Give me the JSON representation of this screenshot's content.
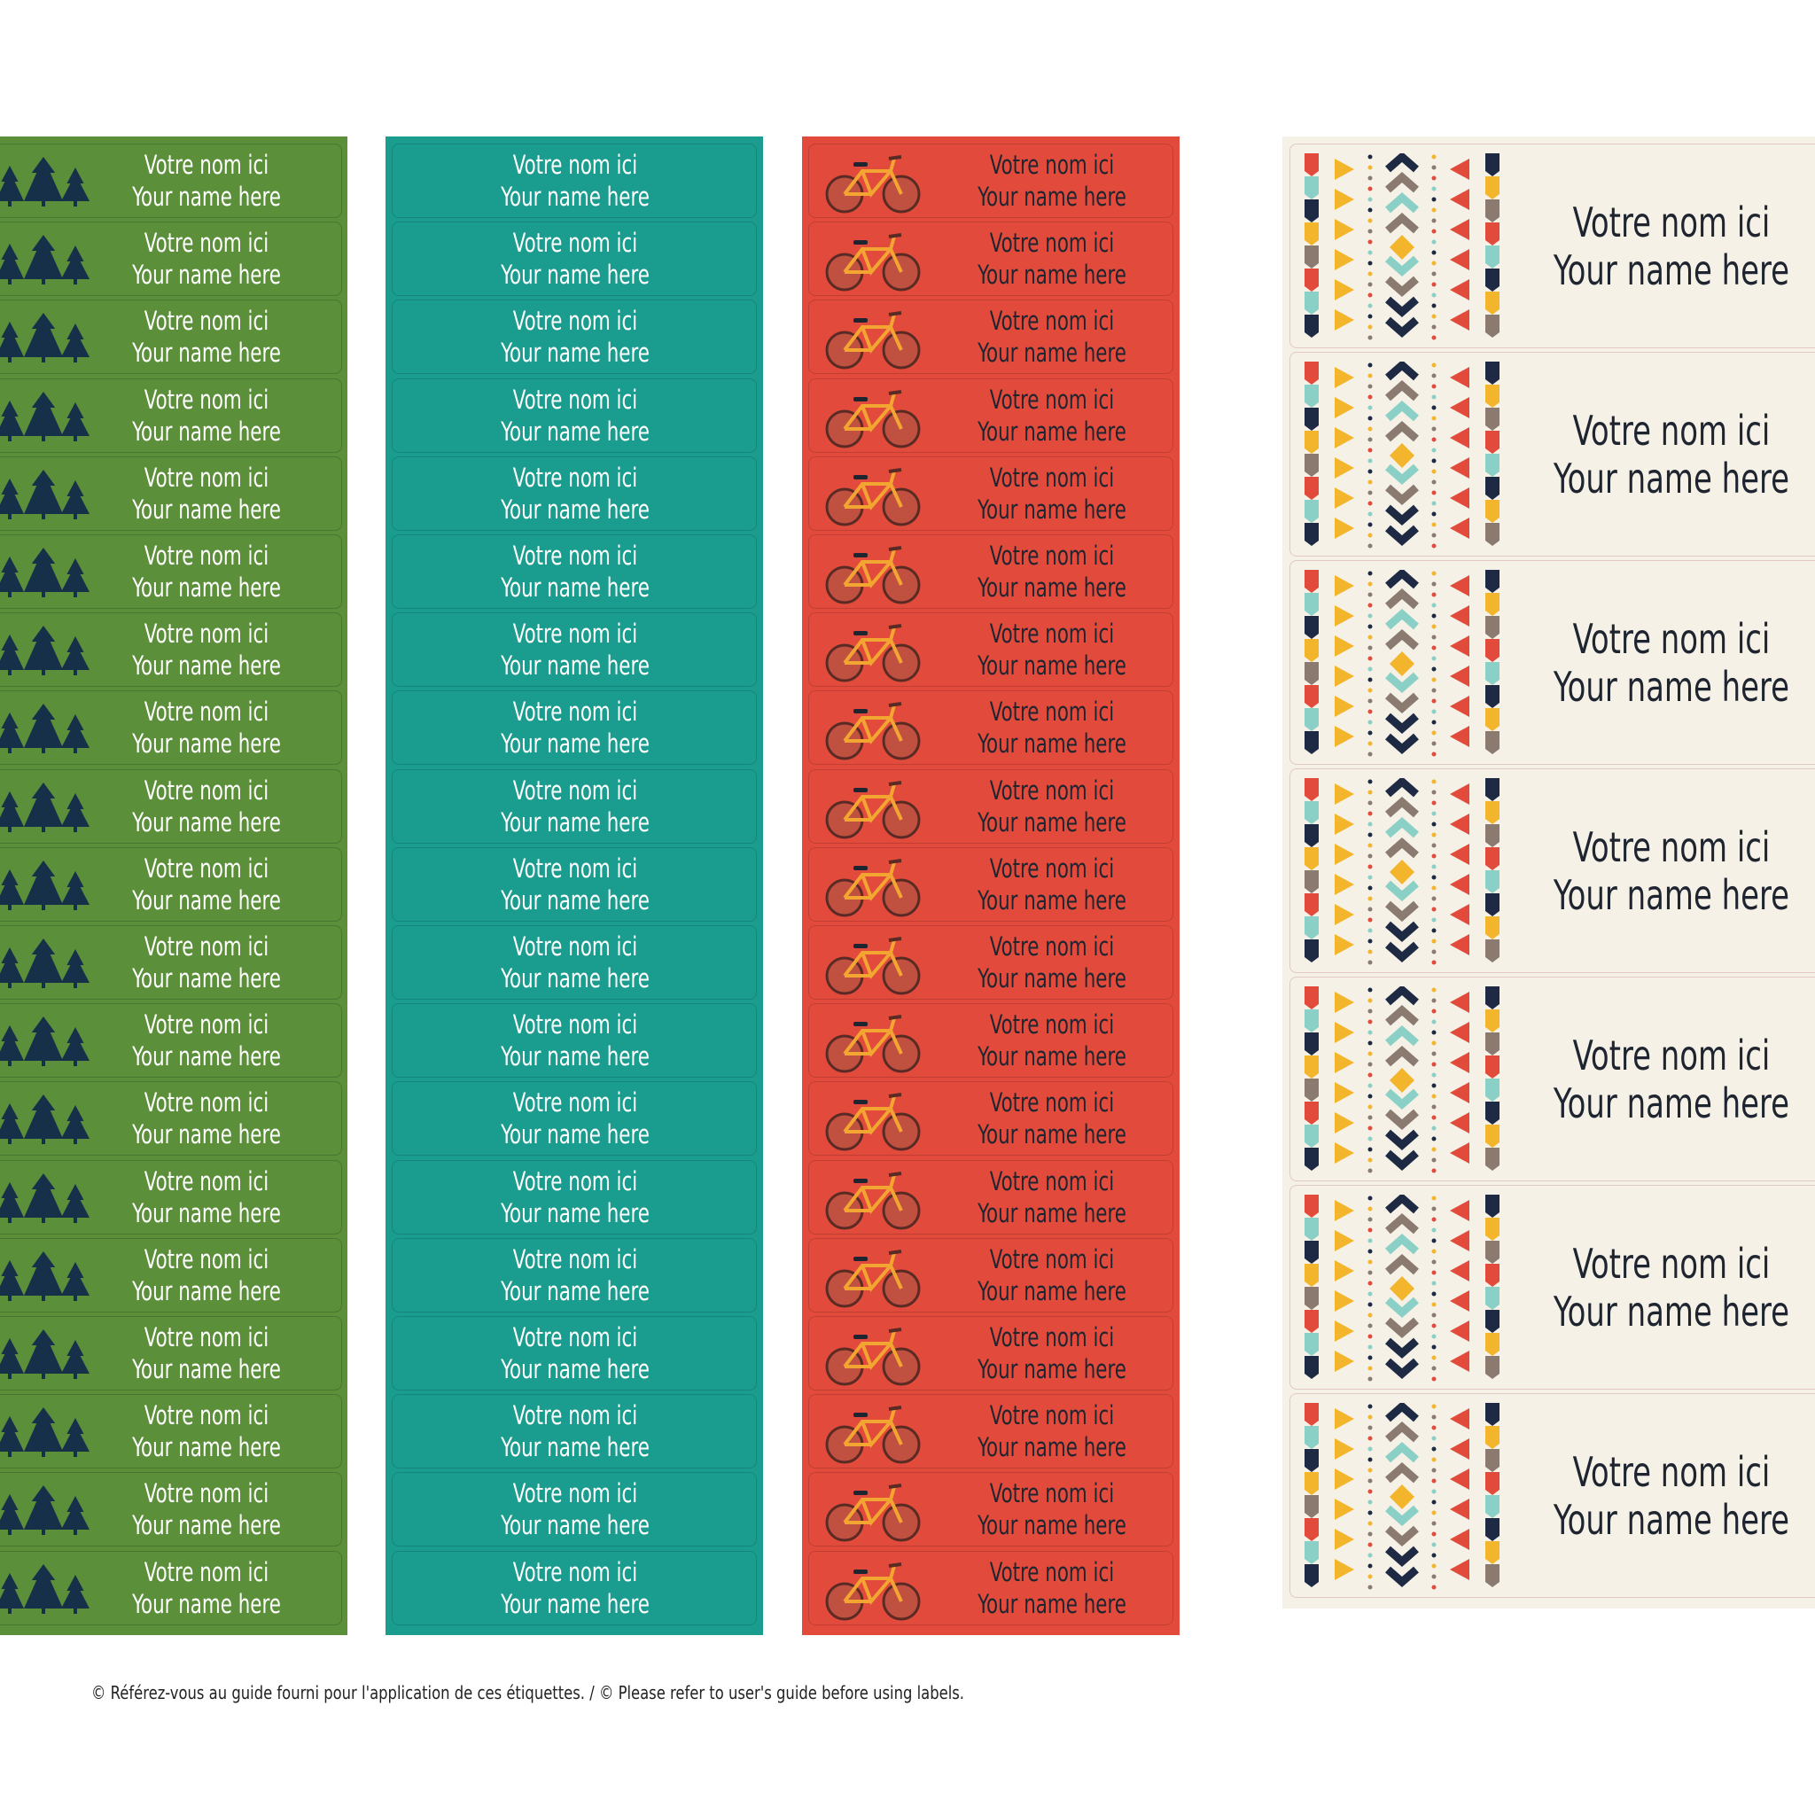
{
  "sheets": [
    {
      "labels": [
        {
          "line1": "Votre nom ici",
          "line2": "Your name here"
        },
        {
          "line1": "Votre nom ici",
          "line2": "Your name here"
        },
        {
          "line1": "Votre nom ici",
          "line2": "Your name here"
        },
        {
          "line1": "Votre nom ici",
          "line2": "Your name here"
        },
        {
          "line1": "Votre nom ici",
          "line2": "Your name here"
        },
        {
          "line1": "Votre nom ici",
          "line2": "Your name here"
        },
        {
          "line1": "Votre nom ici",
          "line2": "Your name here"
        },
        {
          "line1": "Votre nom ici",
          "line2": "Your name here"
        },
        {
          "line1": "Votre nom ici",
          "line2": "Your name here"
        },
        {
          "line1": "Votre nom ici",
          "line2": "Your name here"
        },
        {
          "line1": "Votre nom ici",
          "line2": "Your name here"
        },
        {
          "line1": "Votre nom ici",
          "line2": "Your name here"
        },
        {
          "line1": "Votre nom ici",
          "line2": "Your name here"
        },
        {
          "line1": "Votre nom ici",
          "line2": "Your name here"
        },
        {
          "line1": "Votre nom ici",
          "line2": "Your name here"
        },
        {
          "line1": "Votre nom ici",
          "line2": "Your name here"
        },
        {
          "line1": "Votre nom ici",
          "line2": "Your name here"
        },
        {
          "line1": "Votre nom ici",
          "line2": "Your name here"
        },
        {
          "line1": "Votre nom ici",
          "line2": "Your name here"
        }
      ]
    },
    {
      "labels": [
        {
          "line1": "Votre nom ici",
          "line2": "Your name here"
        },
        {
          "line1": "Votre nom ici",
          "line2": "Your name here"
        },
        {
          "line1": "Votre nom ici",
          "line2": "Your name here"
        },
        {
          "line1": "Votre nom ici",
          "line2": "Your name here"
        },
        {
          "line1": "Votre nom ici",
          "line2": "Your name here"
        },
        {
          "line1": "Votre nom ici",
          "line2": "Your name here"
        },
        {
          "line1": "Votre nom ici",
          "line2": "Your name here"
        },
        {
          "line1": "Votre nom ici",
          "line2": "Your name here"
        },
        {
          "line1": "Votre nom ici",
          "line2": "Your name here"
        },
        {
          "line1": "Votre nom ici",
          "line2": "Your name here"
        },
        {
          "line1": "Votre nom ici",
          "line2": "Your name here"
        },
        {
          "line1": "Votre nom ici",
          "line2": "Your name here"
        },
        {
          "line1": "Votre nom ici",
          "line2": "Your name here"
        },
        {
          "line1": "Votre nom ici",
          "line2": "Your name here"
        },
        {
          "line1": "Votre nom ici",
          "line2": "Your name here"
        },
        {
          "line1": "Votre nom ici",
          "line2": "Your name here"
        },
        {
          "line1": "Votre nom ici",
          "line2": "Your name here"
        },
        {
          "line1": "Votre nom ici",
          "line2": "Your name here"
        },
        {
          "line1": "Votre nom ici",
          "line2": "Your name here"
        }
      ]
    },
    {
      "labels": [
        {
          "line1": "Votre nom ici",
          "line2": "Your name here"
        },
        {
          "line1": "Votre nom ici",
          "line2": "Your name here"
        },
        {
          "line1": "Votre nom ici",
          "line2": "Your name here"
        },
        {
          "line1": "Votre nom ici",
          "line2": "Your name here"
        },
        {
          "line1": "Votre nom ici",
          "line2": "Your name here"
        },
        {
          "line1": "Votre nom ici",
          "line2": "Your name here"
        },
        {
          "line1": "Votre nom ici",
          "line2": "Your name here"
        },
        {
          "line1": "Votre nom ici",
          "line2": "Your name here"
        },
        {
          "line1": "Votre nom ici",
          "line2": "Your name here"
        },
        {
          "line1": "Votre nom ici",
          "line2": "Your name here"
        },
        {
          "line1": "Votre nom ici",
          "line2": "Your name here"
        },
        {
          "line1": "Votre nom ici",
          "line2": "Your name here"
        },
        {
          "line1": "Votre nom ici",
          "line2": "Your name here"
        },
        {
          "line1": "Votre nom ici",
          "line2": "Your name here"
        },
        {
          "line1": "Votre nom ici",
          "line2": "Your name here"
        },
        {
          "line1": "Votre nom ici",
          "line2": "Your name here"
        },
        {
          "line1": "Votre nom ici",
          "line2": "Your name here"
        },
        {
          "line1": "Votre nom ici",
          "line2": "Your name here"
        },
        {
          "line1": "Votre nom ici",
          "line2": "Your name here"
        }
      ]
    },
    {
      "labels": [
        {
          "line1": "Votre nom ici",
          "line2": "Your name here"
        },
        {
          "line1": "Votre nom ici",
          "line2": "Your name here"
        },
        {
          "line1": "Votre nom ici",
          "line2": "Your name here"
        },
        {
          "line1": "Votre nom ici",
          "line2": "Your name here"
        },
        {
          "line1": "Votre nom ici",
          "line2": "Your name here"
        },
        {
          "line1": "Votre nom ici",
          "line2": "Your name here"
        },
        {
          "line1": "Votre nom ici",
          "line2": "Your name here"
        }
      ]
    }
  ],
  "footer": "© Référez-vous au guide fourni pour l'application de ces étiquettes. / © Please refer to user's guide before using labels."
}
